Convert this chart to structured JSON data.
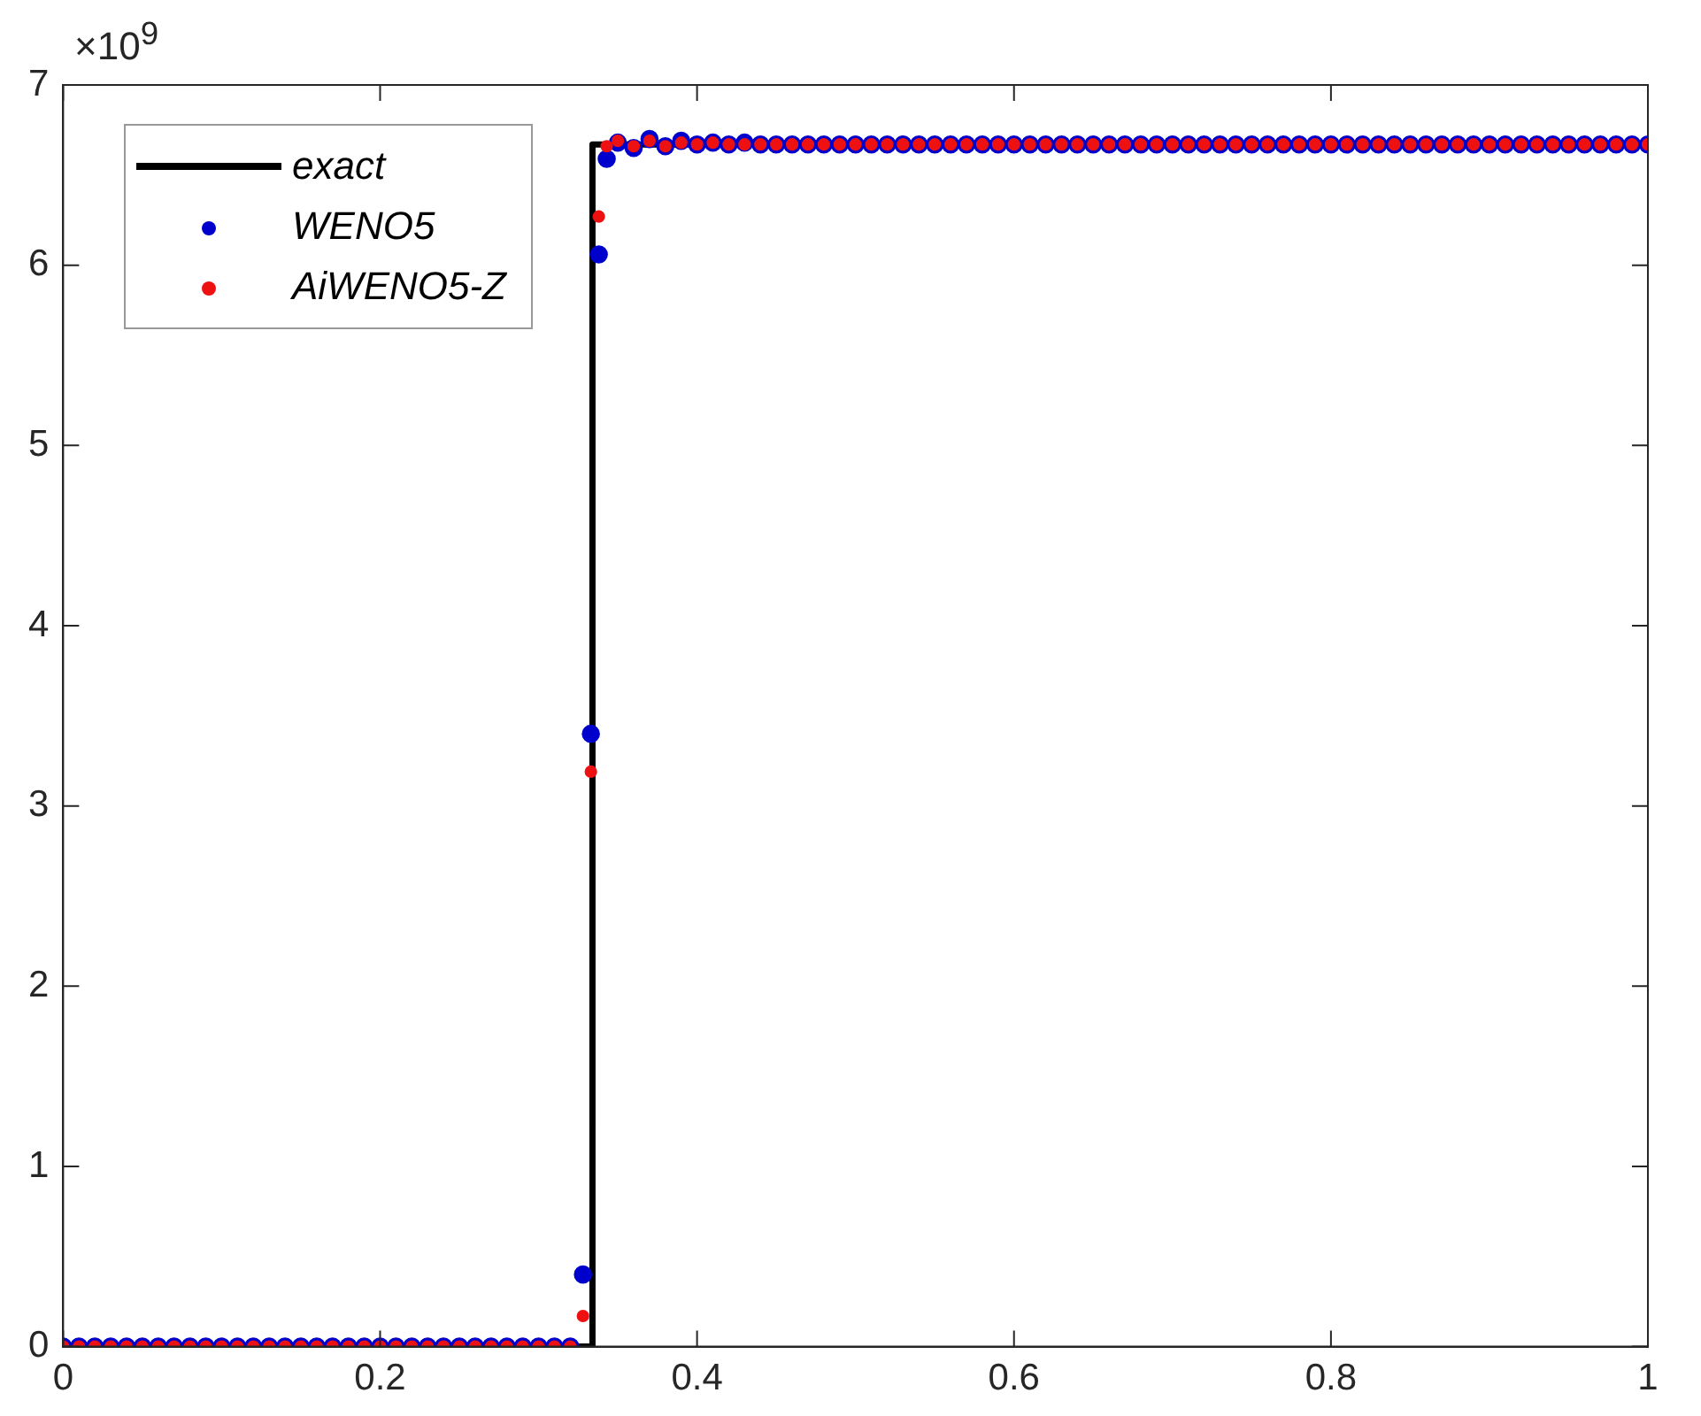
{
  "chart_data": {
    "type": "scatter",
    "xlim": [
      0,
      1
    ],
    "xticks": [
      0,
      0.2,
      0.4,
      0.6,
      0.8,
      1
    ],
    "ylim": [
      0,
      7
    ],
    "yticks": [
      0,
      1,
      2,
      3,
      4,
      5,
      6,
      7
    ],
    "grid": false,
    "legend": "top left",
    "annotations": [
      "×10$^{9}$"
    ],
    "series": [
      {
        "name": "exact",
        "type": "line",
        "color": "#000000",
        "marker": "none",
        "line_style": "solid",
        "x": [
          0,
          0.334,
          0.334,
          1
        ],
        "values": [
          0,
          0,
          6.67,
          6.67
        ]
      },
      {
        "name": "WENO5",
        "type": "scatter",
        "color": "#0000cc",
        "marker": "circle",
        "x": [
          0,
          0.01,
          0.02,
          0.03,
          0.04,
          0.05,
          0.06,
          0.07,
          0.08,
          0.09,
          0.1,
          0.11,
          0.12,
          0.13,
          0.14,
          0.15,
          0.16,
          0.17,
          0.18,
          0.19,
          0.2,
          0.21,
          0.22,
          0.23,
          0.24,
          0.25,
          0.26,
          0.27,
          0.28,
          0.29,
          0.3,
          0.31,
          0.32,
          0.328,
          0.333,
          0.338,
          0.343,
          0.35,
          0.36,
          0.37,
          0.38,
          0.39,
          0.4,
          0.41,
          0.42,
          0.43,
          0.44,
          0.45,
          0.46,
          0.47,
          0.48,
          0.49,
          0.5,
          0.51,
          0.52,
          0.53,
          0.54,
          0.55,
          0.56,
          0.57,
          0.58,
          0.59,
          0.6,
          0.61,
          0.62,
          0.63,
          0.64,
          0.65,
          0.66,
          0.67,
          0.68,
          0.69,
          0.7,
          0.71,
          0.72,
          0.73,
          0.74,
          0.75,
          0.76,
          0.77,
          0.78,
          0.79,
          0.8,
          0.81,
          0.82,
          0.83,
          0.84,
          0.85,
          0.86,
          0.87,
          0.88,
          0.89,
          0.9,
          0.91,
          0.92,
          0.93,
          0.94,
          0.95,
          0.96,
          0.97,
          0.98,
          0.99,
          1
        ],
        "values": [
          0,
          0,
          0,
          0,
          0,
          0,
          0,
          0,
          0,
          0,
          0,
          0,
          0,
          0,
          0,
          0,
          0,
          0,
          0,
          0,
          0,
          0,
          0,
          0,
          0,
          0,
          0,
          0,
          0,
          0,
          0,
          0,
          0,
          0.4,
          3.4,
          6.06,
          6.59,
          6.68,
          6.65,
          6.7,
          6.66,
          6.69,
          6.67,
          6.68,
          6.67,
          6.68,
          6.67,
          6.67,
          6.67,
          6.67,
          6.67,
          6.67,
          6.67,
          6.67,
          6.67,
          6.67,
          6.67,
          6.67,
          6.67,
          6.67,
          6.67,
          6.67,
          6.67,
          6.67,
          6.67,
          6.67,
          6.67,
          6.67,
          6.67,
          6.67,
          6.67,
          6.67,
          6.67,
          6.67,
          6.67,
          6.67,
          6.67,
          6.67,
          6.67,
          6.67,
          6.67,
          6.67,
          6.67,
          6.67,
          6.67,
          6.67,
          6.67,
          6.67,
          6.67,
          6.67,
          6.67,
          6.67,
          6.67,
          6.67,
          6.67,
          6.67,
          6.67,
          6.67,
          6.67,
          6.67,
          6.67,
          6.67,
          6.67
        ]
      },
      {
        "name": "AiWENO5-Z",
        "type": "scatter",
        "color": "#ee1111",
        "marker": "circle",
        "x": [
          0,
          0.01,
          0.02,
          0.03,
          0.04,
          0.05,
          0.06,
          0.07,
          0.08,
          0.09,
          0.1,
          0.11,
          0.12,
          0.13,
          0.14,
          0.15,
          0.16,
          0.17,
          0.18,
          0.19,
          0.2,
          0.21,
          0.22,
          0.23,
          0.24,
          0.25,
          0.26,
          0.27,
          0.28,
          0.29,
          0.3,
          0.31,
          0.32,
          0.328,
          0.333,
          0.338,
          0.343,
          0.35,
          0.36,
          0.37,
          0.38,
          0.39,
          0.4,
          0.41,
          0.42,
          0.43,
          0.44,
          0.45,
          0.46,
          0.47,
          0.48,
          0.49,
          0.5,
          0.51,
          0.52,
          0.53,
          0.54,
          0.55,
          0.56,
          0.57,
          0.58,
          0.59,
          0.6,
          0.61,
          0.62,
          0.63,
          0.64,
          0.65,
          0.66,
          0.67,
          0.68,
          0.69,
          0.7,
          0.71,
          0.72,
          0.73,
          0.74,
          0.75,
          0.76,
          0.77,
          0.78,
          0.79,
          0.8,
          0.81,
          0.82,
          0.83,
          0.84,
          0.85,
          0.86,
          0.87,
          0.88,
          0.89,
          0.9,
          0.91,
          0.92,
          0.93,
          0.94,
          0.95,
          0.96,
          0.97,
          0.98,
          0.99,
          1
        ],
        "values": [
          0,
          0,
          0,
          0,
          0,
          0,
          0,
          0,
          0,
          0,
          0,
          0,
          0,
          0,
          0,
          0,
          0,
          0,
          0,
          0,
          0,
          0,
          0,
          0,
          0,
          0,
          0,
          0,
          0,
          0,
          0,
          0,
          0,
          0.17,
          3.19,
          6.27,
          6.66,
          6.69,
          6.66,
          6.69,
          6.66,
          6.68,
          6.67,
          6.68,
          6.67,
          6.67,
          6.67,
          6.67,
          6.67,
          6.67,
          6.67,
          6.67,
          6.67,
          6.67,
          6.67,
          6.67,
          6.67,
          6.67,
          6.67,
          6.67,
          6.67,
          6.67,
          6.67,
          6.67,
          6.67,
          6.67,
          6.67,
          6.67,
          6.67,
          6.67,
          6.67,
          6.67,
          6.67,
          6.67,
          6.67,
          6.67,
          6.67,
          6.67,
          6.67,
          6.67,
          6.67,
          6.67,
          6.67,
          6.67,
          6.67,
          6.67,
          6.67,
          6.67,
          6.67,
          6.67,
          6.67,
          6.67,
          6.67,
          6.67,
          6.67,
          6.67,
          6.67,
          6.67,
          6.67,
          6.67,
          6.67,
          6.67,
          6.67
        ]
      }
    ]
  }
}
